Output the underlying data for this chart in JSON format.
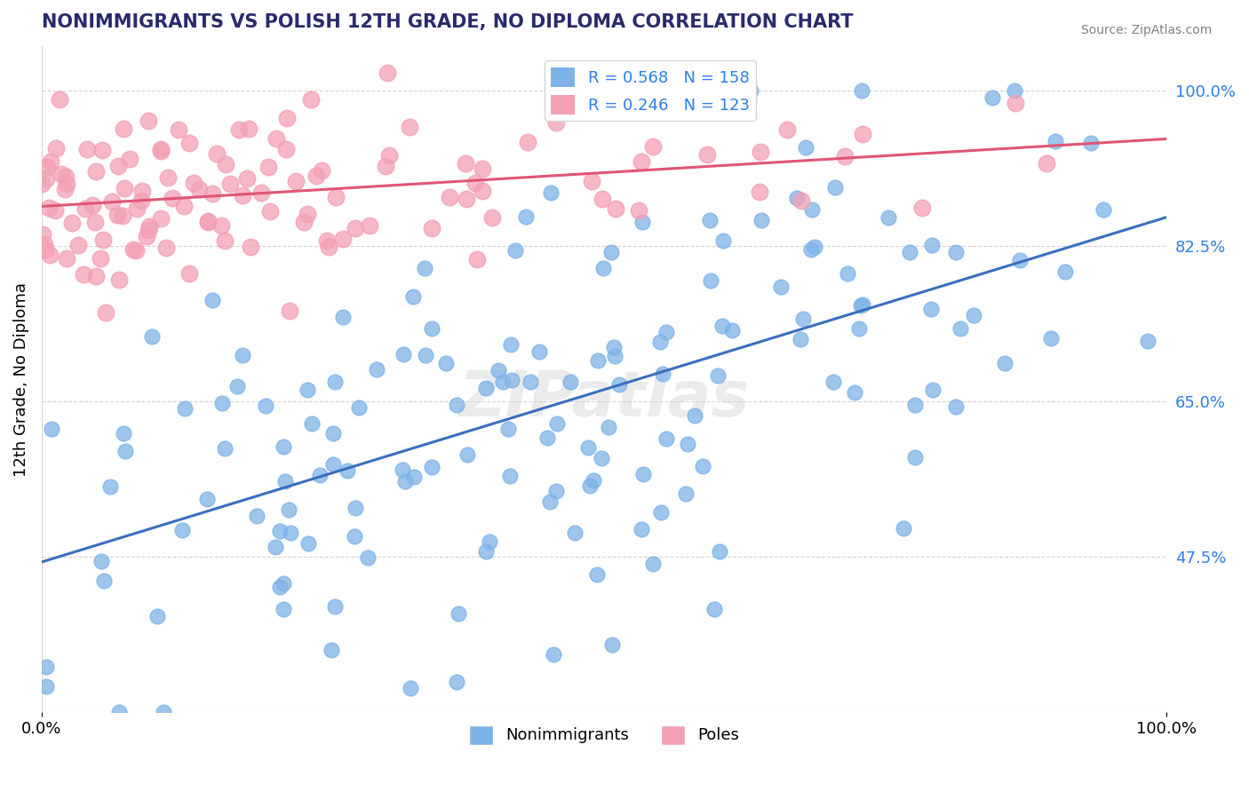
{
  "title": "NONIMMIGRANTS VS POLISH 12TH GRADE, NO DIPLOMA CORRELATION CHART",
  "source_text": "Source: ZipAtlas.com",
  "xlabel": "",
  "ylabel": "12th Grade, No Diploma",
  "legend_labels": [
    "Nonimmigrants",
    "Poles"
  ],
  "blue_color": "#7eb3e8",
  "pink_color": "#f4a0b5",
  "blue_line_color": "#3a6fbe",
  "pink_line_color": "#e05575",
  "R_blue": 0.568,
  "N_blue": 158,
  "R_pink": 0.246,
  "N_pink": 123,
  "xmin": 0.0,
  "xmax": 1.0,
  "ymin": 0.3,
  "ymax": 1.05,
  "right_yticks": [
    1.0,
    0.825,
    0.65,
    0.475
  ],
  "right_ytick_labels": [
    "100.0%",
    "82.5%",
    "65.0%",
    "47.5%"
  ],
  "xtick_labels": [
    "0.0%",
    "100.0%"
  ],
  "watermark": "ZIPatlas",
  "title_color": "#2a2a6e",
  "axis_label_color": "#2a7fe8",
  "legend_r_color_blue": "#2a7fe8",
  "legend_r_color_pink": "#2a7fe8",
  "legend_n_color": "#2a7fe8",
  "blue_seed": 42,
  "pink_seed": 7,
  "blue_marker_size": 18,
  "pink_marker_size": 22
}
